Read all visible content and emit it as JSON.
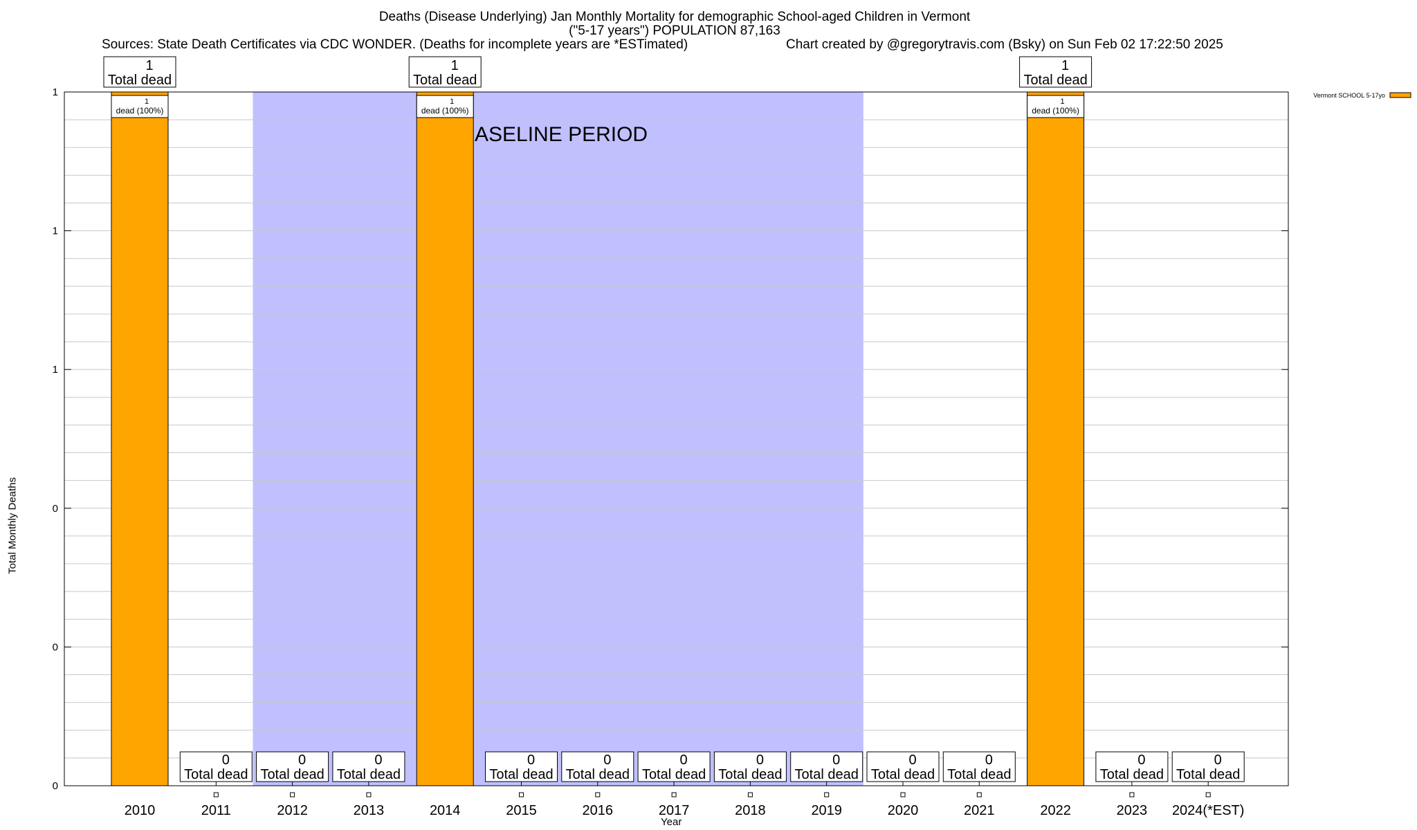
{
  "header": {
    "title_line1": "Deaths (Disease Underlying) Jan Monthly Mortality for demographic School-aged Children in Vermont",
    "title_line2": "(\"5-17 years\") POPULATION 87,163",
    "sources": "Sources: State Death Certificates via CDC WONDER. (Deaths for incomplete years are *ESTimated)",
    "credit": "Chart created by @gregorytravis.com (Bsky) on Sun Feb 02 17:22:50 2025"
  },
  "chart_data": {
    "type": "bar",
    "xlabel": "Year",
    "ylabel": "Total Monthly Deaths",
    "categories": [
      "2010",
      "2011",
      "2012",
      "2013",
      "2014",
      "2015",
      "2016",
      "2017",
      "2018",
      "2019",
      "2020",
      "2021",
      "2022",
      "2023",
      "2024(*EST)"
    ],
    "series": [
      {
        "name": "Vermont SCHOOL 5-17yo",
        "values": [
          1,
          0,
          0,
          0,
          1,
          0,
          0,
          0,
          0,
          0,
          0,
          0,
          1,
          0,
          0
        ]
      }
    ],
    "total_label_suffix": "Total dead",
    "segment_labels": {
      "0": "dead (100%)",
      "4": "dead (100%)",
      "12": "dead (100%)"
    },
    "ylim": [
      0,
      1
    ],
    "yticks": [
      {
        "value": 0,
        "label": "0"
      },
      {
        "value": 0.2,
        "label": "0"
      },
      {
        "value": 0.4,
        "label": "0"
      },
      {
        "value": 0.6,
        "label": "1"
      },
      {
        "value": 0.8,
        "label": "1"
      },
      {
        "value": 1,
        "label": "1"
      }
    ],
    "baseline_period": {
      "label": "BASELINE PERIOD",
      "from": "2012",
      "to": "2019"
    },
    "legend": {
      "placement": "top-right",
      "entry": "Vermont SCHOOL 5-17yo"
    },
    "colors": {
      "bar": "#ffa500",
      "baseline_shade": "#c0c0ff",
      "grid": "#c8c8c8"
    },
    "grid": true
  }
}
